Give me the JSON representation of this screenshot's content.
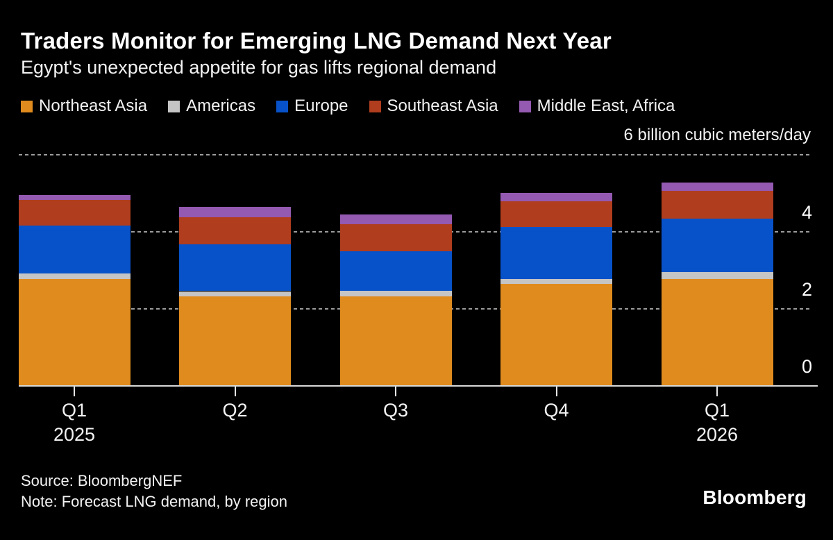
{
  "header": {
    "title": "Traders Monitor for Emerging LNG Demand Next Year",
    "subtitle": "Egypt's unexpected appetite for gas lifts regional demand"
  },
  "footer": {
    "source": "Source: BloombergNEF",
    "note": "Note: Forecast LNG demand, by region",
    "logo": "Bloomberg"
  },
  "colors": {
    "background": "#000000",
    "text": "#f2f2f2",
    "gridline": "#9c9c9c",
    "baseline": "#d9d9d9",
    "northeast_asia": "#E08B1E",
    "americas": "#C5C5C5",
    "europe": "#0852C9",
    "southeast_asia": "#AF3D1E",
    "middle_east_africa": "#9459B0"
  },
  "chart_data": {
    "type": "bar",
    "stacked": true,
    "title": "Traders Monitor for Emerging LNG Demand Next Year",
    "subtitle": "Egypt's unexpected appetite for gas lifts regional demand",
    "unit_label": "6 billion cubic meters/day",
    "categories": [
      "Q1",
      "Q2",
      "Q3",
      "Q4",
      "Q1"
    ],
    "category_years": [
      "2025",
      "",
      "",
      "",
      "2026"
    ],
    "series": [
      {
        "name": "Northeast Asia",
        "color": "#E08B1E",
        "values": [
          2.78,
          2.33,
          2.33,
          2.64,
          2.78
        ]
      },
      {
        "name": "Americas",
        "color": "#C5C5C5",
        "values": [
          0.14,
          0.13,
          0.14,
          0.14,
          0.18
        ]
      },
      {
        "name": "Europe",
        "color": "#0852C9",
        "values": [
          1.24,
          1.22,
          1.02,
          1.35,
          1.38
        ]
      },
      {
        "name": "Southeast Asia",
        "color": "#AF3D1E",
        "values": [
          0.67,
          0.7,
          0.7,
          0.66,
          0.72
        ]
      },
      {
        "name": "Middle East, Africa",
        "color": "#9459B0",
        "values": [
          0.13,
          0.27,
          0.25,
          0.22,
          0.22
        ]
      }
    ],
    "totals": [
      4.96,
      4.65,
      4.44,
      5.01,
      5.28
    ],
    "ylim": [
      0,
      6
    ],
    "yticks_labeled": [
      0,
      2,
      4
    ],
    "gridlines": [
      2,
      4,
      6
    ],
    "grid_style": "dotted",
    "legend_position": "top",
    "ylabel": "billion cubic meters/day"
  }
}
